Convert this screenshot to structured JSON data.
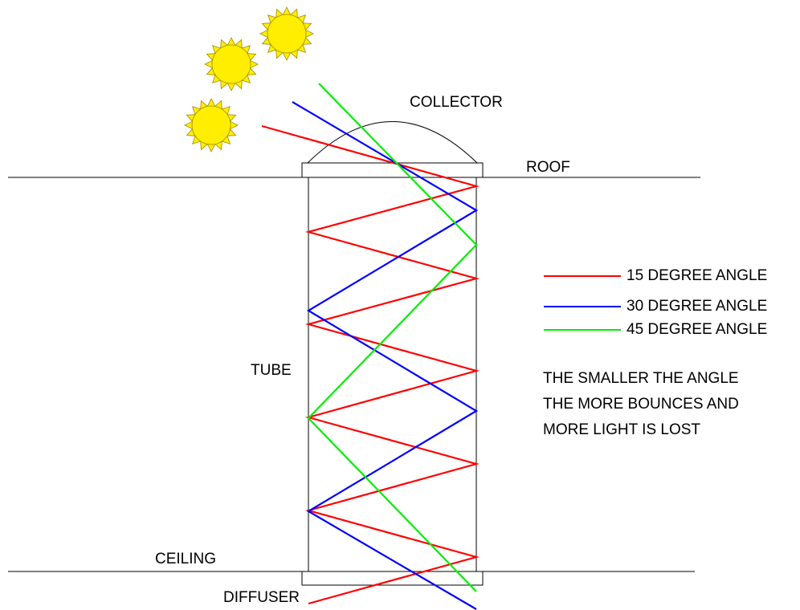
{
  "labels": {
    "collector": "COLLECTOR",
    "roof": "ROOF",
    "tube": "TUBE",
    "ceiling": "CEILING",
    "diffuser": "DIFFUSER"
  },
  "legend": [
    {
      "name": "15 DEGREE ANGLE",
      "color": "#ff0000"
    },
    {
      "name": "30 DEGREE ANGLE",
      "color": "#0000ff"
    },
    {
      "name": "45 DEGREE ANGLE",
      "color": "#00ee00"
    }
  ],
  "note": [
    "THE SMALLER THE ANGLE",
    "THE MORE BOUNCES AND",
    "MORE LIGHT IS LOST"
  ]
}
